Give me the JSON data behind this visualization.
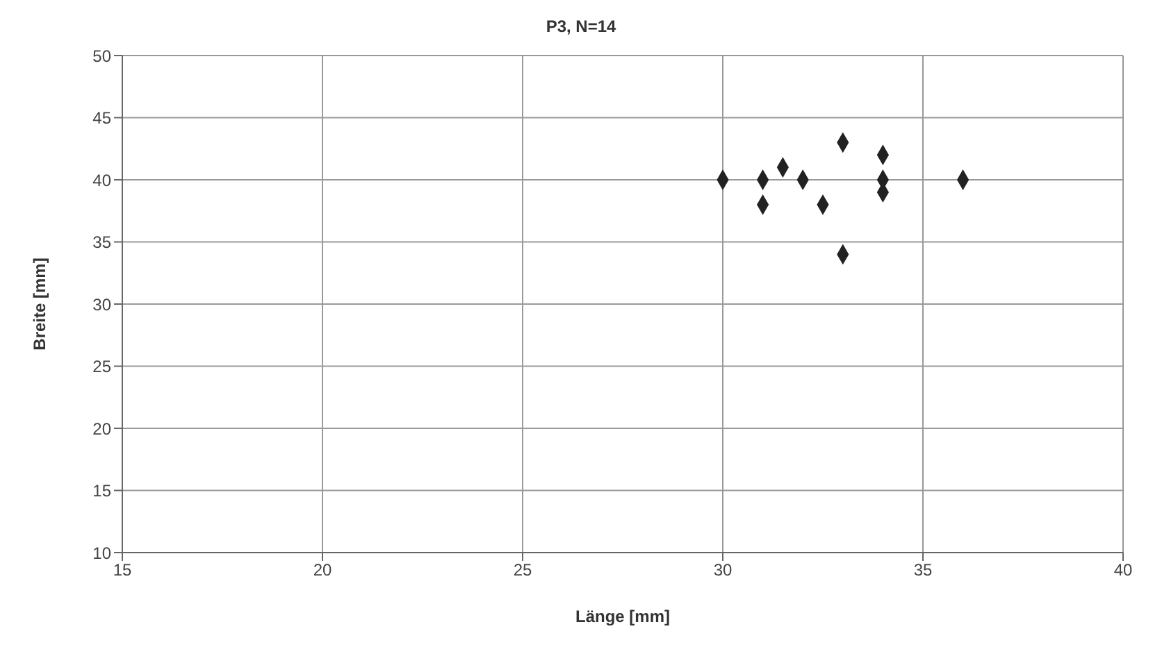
{
  "chart_data": {
    "type": "scatter",
    "title": "P3, N=14",
    "xlabel": "Länge [mm]",
    "ylabel": "Breite [mm]",
    "x": [
      30,
      31,
      31,
      31.5,
      32,
      32.5,
      33,
      33,
      34,
      34,
      34,
      36
    ],
    "series": [
      {
        "color": "#222222",
        "values": [
          40,
          40,
          38,
          41,
          40,
          38,
          43,
          34,
          42,
          40,
          39,
          40
        ]
      }
    ],
    "xlim": [
      15,
      40
    ],
    "xticks": [
      15,
      20,
      25,
      30,
      35,
      40
    ],
    "ylim": [
      10,
      50
    ],
    "yticks": [
      10,
      15,
      20,
      25,
      30,
      35,
      40,
      45,
      50
    ],
    "grid": true,
    "marker": "diamond",
    "legend": false
  }
}
